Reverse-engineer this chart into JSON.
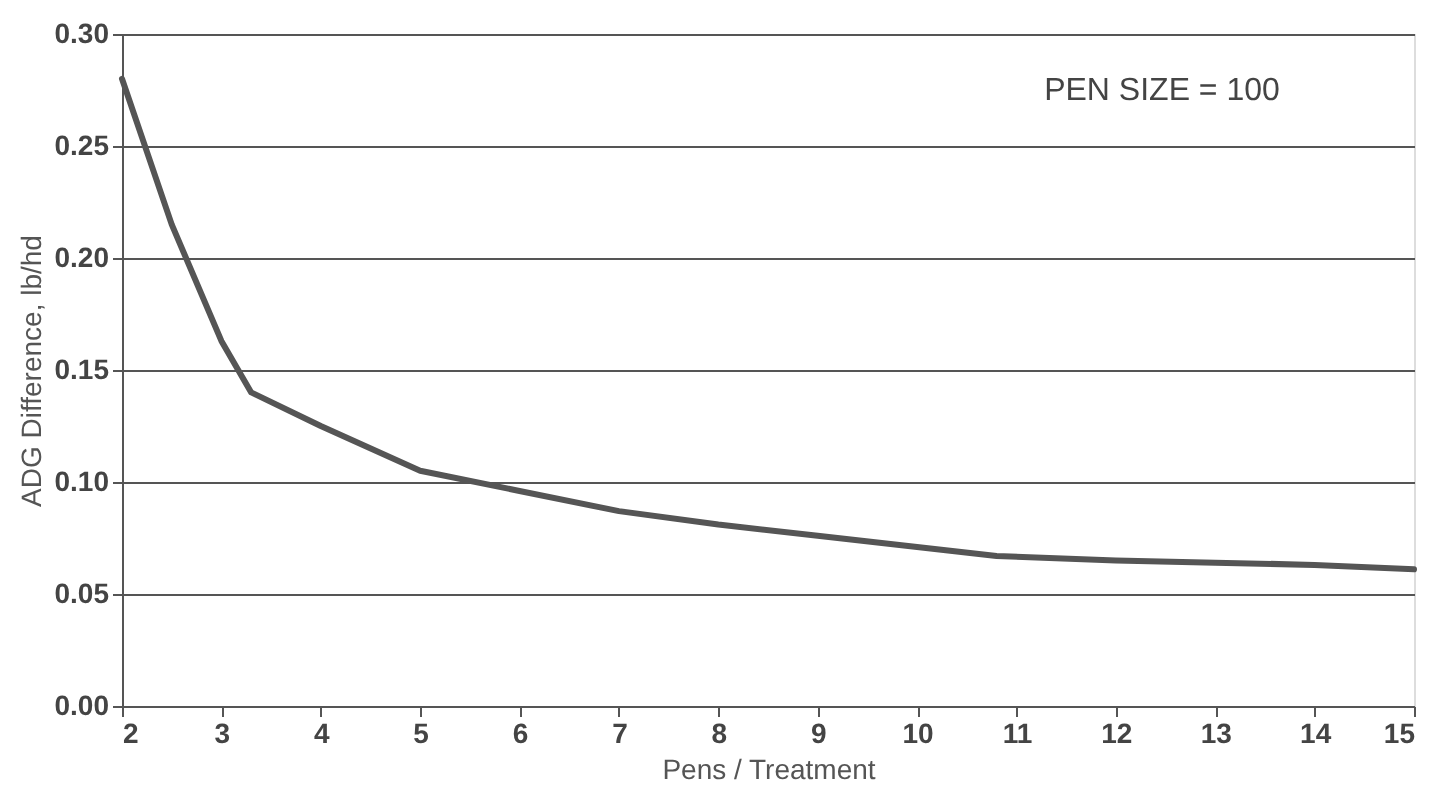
{
  "chart_data": {
    "type": "line",
    "xlabel": "Pens / Treatment",
    "ylabel": "ADG Difference, lb/hd",
    "x": [
      2,
      2.5,
      3,
      3.3,
      4,
      5,
      6,
      7,
      8,
      9,
      10,
      10.8,
      12,
      13,
      14,
      15
    ],
    "series": [
      {
        "color": "#555555",
        "values": [
          0.28,
          0.215,
          0.163,
          0.14,
          0.125,
          0.105,
          0.096,
          0.087,
          0.081,
          0.076,
          0.071,
          0.067,
          0.065,
          0.064,
          0.063,
          0.061
        ]
      }
    ],
    "xlim": [
      2,
      15
    ],
    "xticks": [
      2,
      3,
      4,
      5,
      6,
      7,
      8,
      9,
      10,
      11,
      12,
      13,
      14,
      15
    ],
    "ylim": [
      0,
      0.3
    ],
    "yticks": [
      {
        "value": 0,
        "label": "0.00"
      },
      {
        "value": 0.05,
        "label": "0.05"
      },
      {
        "value": 0.1,
        "label": "0.10"
      },
      {
        "value": 0.15,
        "label": "0.15"
      },
      {
        "value": 0.2,
        "label": "0.20"
      },
      {
        "value": 0.25,
        "label": "0.25"
      },
      {
        "value": 0.3,
        "label": "0.30"
      }
    ],
    "grid": "y",
    "legend": false,
    "marker": "none",
    "line_style": "solid",
    "annotations": [
      "PEN SIZE = 100"
    ]
  }
}
